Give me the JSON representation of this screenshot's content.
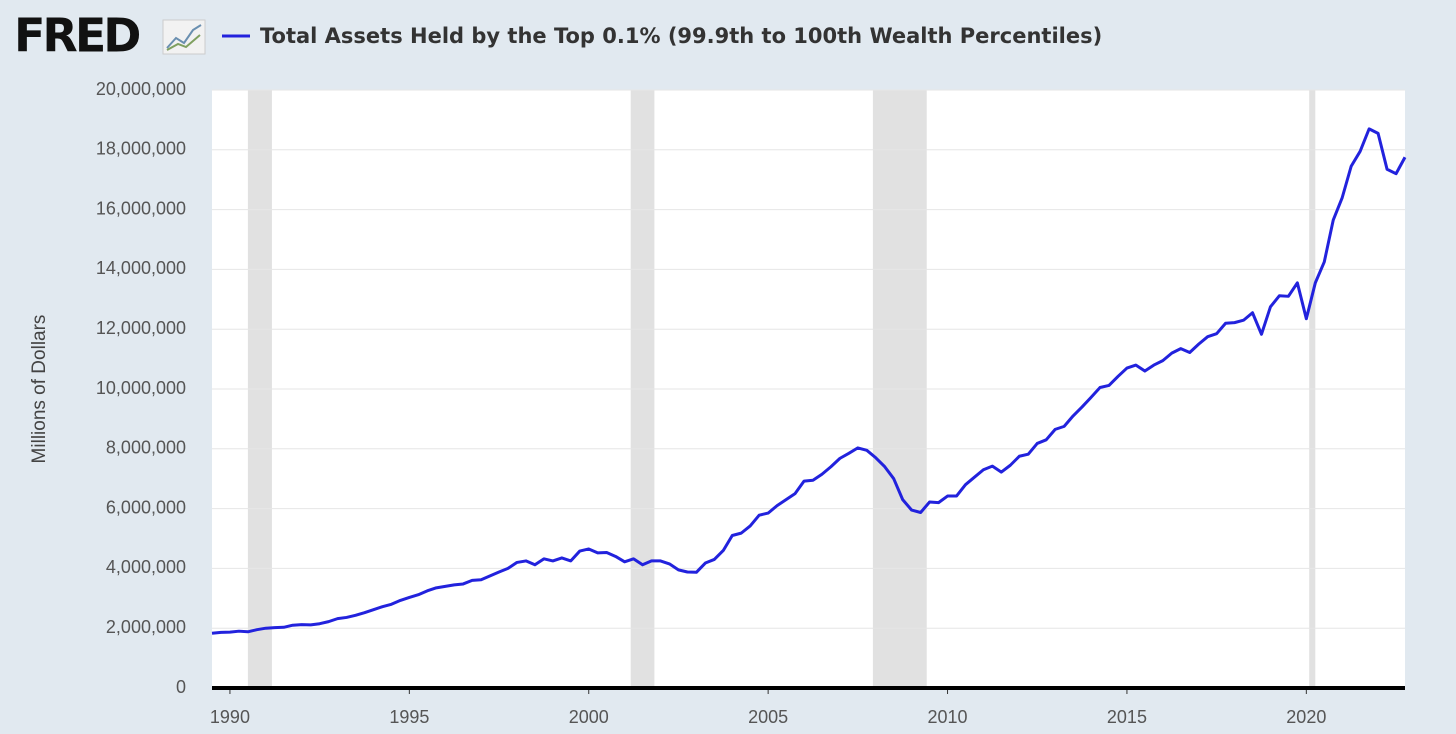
{
  "logo": "FRED",
  "chart_data": {
    "type": "line",
    "title": "Total Assets Held by the Top 0.1% (99.9th to 100th Wealth Percentiles)",
    "y_label": "Millions of Dollars",
    "xlim": [
      1989.5,
      2022.75
    ],
    "xticks": [
      1990,
      1995,
      2000,
      2005,
      2010,
      2015,
      2020
    ],
    "ylim": [
      0,
      20000000
    ],
    "yticks": [
      0,
      {
        "value": 2000000,
        "label": "2,000,000"
      },
      {
        "value": 4000000,
        "label": "4,000,000"
      },
      {
        "value": 6000000,
        "label": "6,000,000"
      },
      {
        "value": 8000000,
        "label": "8,000,000"
      },
      {
        "value": 10000000,
        "label": "10,000,000"
      },
      {
        "value": 12000000,
        "label": "12,000,000"
      },
      {
        "value": 14000000,
        "label": "14,000,000"
      },
      {
        "value": 16000000,
        "label": "16,000,000"
      },
      {
        "value": 18000000,
        "label": "18,000,000"
      },
      {
        "value": 20000000,
        "label": "20,000,000"
      }
    ],
    "grid": true,
    "recessions": [
      [
        1990.5,
        1991.17
      ],
      [
        2001.17,
        2001.83
      ],
      [
        2007.92,
        2009.42
      ],
      [
        2020.08,
        2020.25
      ]
    ],
    "recession_color": "#e1e1e1",
    "x": [
      1989.5,
      1989.75,
      1990,
      1990.25,
      1990.5,
      1990.75,
      1991,
      1991.25,
      1991.5,
      1991.75,
      1992,
      1992.25,
      1992.5,
      1992.75,
      1993,
      1993.25,
      1993.5,
      1993.75,
      1994,
      1994.25,
      1994.5,
      1994.75,
      1995,
      1995.25,
      1995.5,
      1995.75,
      1996,
      1996.25,
      1996.5,
      1996.75,
      1997,
      1997.25,
      1997.5,
      1997.75,
      1998,
      1998.25,
      1998.5,
      1998.75,
      1999,
      1999.25,
      1999.5,
      1999.75,
      2000,
      2000.25,
      2000.5,
      2000.75,
      2001,
      2001.25,
      2001.5,
      2001.75,
      2002,
      2002.25,
      2002.5,
      2002.75,
      2003,
      2003.25,
      2003.5,
      2003.75,
      2004,
      2004.25,
      2004.5,
      2004.75,
      2005,
      2005.25,
      2005.5,
      2005.75,
      2006,
      2006.25,
      2006.5,
      2006.75,
      2007,
      2007.25,
      2007.5,
      2007.75,
      2008,
      2008.25,
      2008.5,
      2008.75,
      2009,
      2009.25,
      2009.5,
      2009.75,
      2010,
      2010.25,
      2010.5,
      2010.75,
      2011,
      2011.25,
      2011.5,
      2011.75,
      2012,
      2012.25,
      2012.5,
      2012.75,
      2013,
      2013.25,
      2013.5,
      2013.75,
      2014,
      2014.25,
      2014.5,
      2014.75,
      2015,
      2015.25,
      2015.5,
      2015.75,
      2016,
      2016.25,
      2016.5,
      2016.75,
      2017,
      2017.25,
      2017.5,
      2017.75,
      2018,
      2018.25,
      2018.5,
      2018.75,
      2019,
      2019.25,
      2019.5,
      2019.75,
      2020,
      2020.25,
      2020.5,
      2020.75,
      2021,
      2021.25,
      2021.5,
      2021.75,
      2022,
      2022.25,
      2022.5,
      2022.75
    ],
    "series": [
      {
        "name": "Total Assets Held by the Top 0.1% (99.9th to 100th Wealth Percentiles)",
        "color": "#2222dd",
        "values": [
          1830000,
          1860000,
          1870000,
          1900000,
          1880000,
          1950000,
          2000000,
          2020000,
          2030000,
          2100000,
          2120000,
          2110000,
          2150000,
          2220000,
          2320000,
          2360000,
          2430000,
          2520000,
          2620000,
          2720000,
          2800000,
          2930000,
          3030000,
          3120000,
          3250000,
          3350000,
          3400000,
          3450000,
          3480000,
          3600000,
          3620000,
          3750000,
          3880000,
          4000000,
          4200000,
          4250000,
          4120000,
          4320000,
          4250000,
          4350000,
          4250000,
          4580000,
          4650000,
          4520000,
          4530000,
          4400000,
          4220000,
          4320000,
          4120000,
          4250000,
          4250000,
          4150000,
          3950000,
          3880000,
          3870000,
          4180000,
          4300000,
          4600000,
          5100000,
          5180000,
          5420000,
          5780000,
          5850000,
          6100000,
          6300000,
          6500000,
          6920000,
          6950000,
          7150000,
          7400000,
          7680000,
          7850000,
          8030000,
          7950000,
          7700000,
          7400000,
          7000000,
          6300000,
          5950000,
          5870000,
          6220000,
          6200000,
          6420000,
          6420000,
          6800000,
          7050000,
          7300000,
          7420000,
          7220000,
          7450000,
          7750000,
          7820000,
          8180000,
          8300000,
          8650000,
          8750000,
          9100000,
          9400000,
          9720000,
          10050000,
          10120000,
          10420000,
          10700000,
          10800000,
          10600000,
          10800000,
          10950000,
          11200000,
          11350000,
          11220000,
          11500000,
          11750000,
          11850000,
          12200000,
          12220000,
          12300000,
          12550000,
          11830000,
          12750000,
          13120000,
          13100000,
          13550000,
          12350000,
          13550000,
          14250000,
          15650000,
          16400000,
          17450000,
          17950000,
          18700000,
          18550000,
          17350000,
          17200000,
          17750000
        ]
      }
    ]
  }
}
